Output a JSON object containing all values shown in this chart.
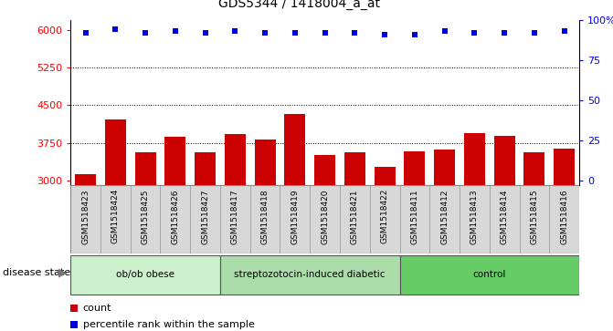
{
  "title": "GDS5344 / 1418004_a_at",
  "samples": [
    "GSM1518423",
    "GSM1518424",
    "GSM1518425",
    "GSM1518426",
    "GSM1518427",
    "GSM1518417",
    "GSM1518418",
    "GSM1518419",
    "GSM1518420",
    "GSM1518421",
    "GSM1518422",
    "GSM1518411",
    "GSM1518412",
    "GSM1518413",
    "GSM1518414",
    "GSM1518415",
    "GSM1518416"
  ],
  "counts": [
    3130,
    4220,
    3560,
    3870,
    3560,
    3920,
    3820,
    4320,
    3510,
    3560,
    3270,
    3580,
    3620,
    3940,
    3890,
    3560,
    3630
  ],
  "percentiles": [
    92,
    94,
    92,
    93,
    92,
    93,
    92,
    92,
    92,
    92,
    91,
    91,
    93,
    92,
    92,
    92,
    93
  ],
  "groups": [
    {
      "label": "ob/ob obese",
      "start": 0,
      "end": 5,
      "color": "#ccf0cc"
    },
    {
      "label": "streptozotocin-induced diabetic",
      "start": 5,
      "end": 11,
      "color": "#aaddaa"
    },
    {
      "label": "control",
      "start": 11,
      "end": 17,
      "color": "#66cc66"
    }
  ],
  "bar_color": "#cc0000",
  "dot_color": "#0000dd",
  "ylim_left": [
    2900,
    6200
  ],
  "ylim_right": [
    -3.23,
    100
  ],
  "yticks_left": [
    3000,
    3750,
    4500,
    5250,
    6000
  ],
  "yticks_right": [
    0,
    25,
    50,
    75,
    100
  ],
  "grid_values": [
    3750,
    4500,
    5250
  ],
  "bg_color": "#d8d8d8",
  "plot_bg": "#ffffff",
  "bar_bottom": 2900
}
